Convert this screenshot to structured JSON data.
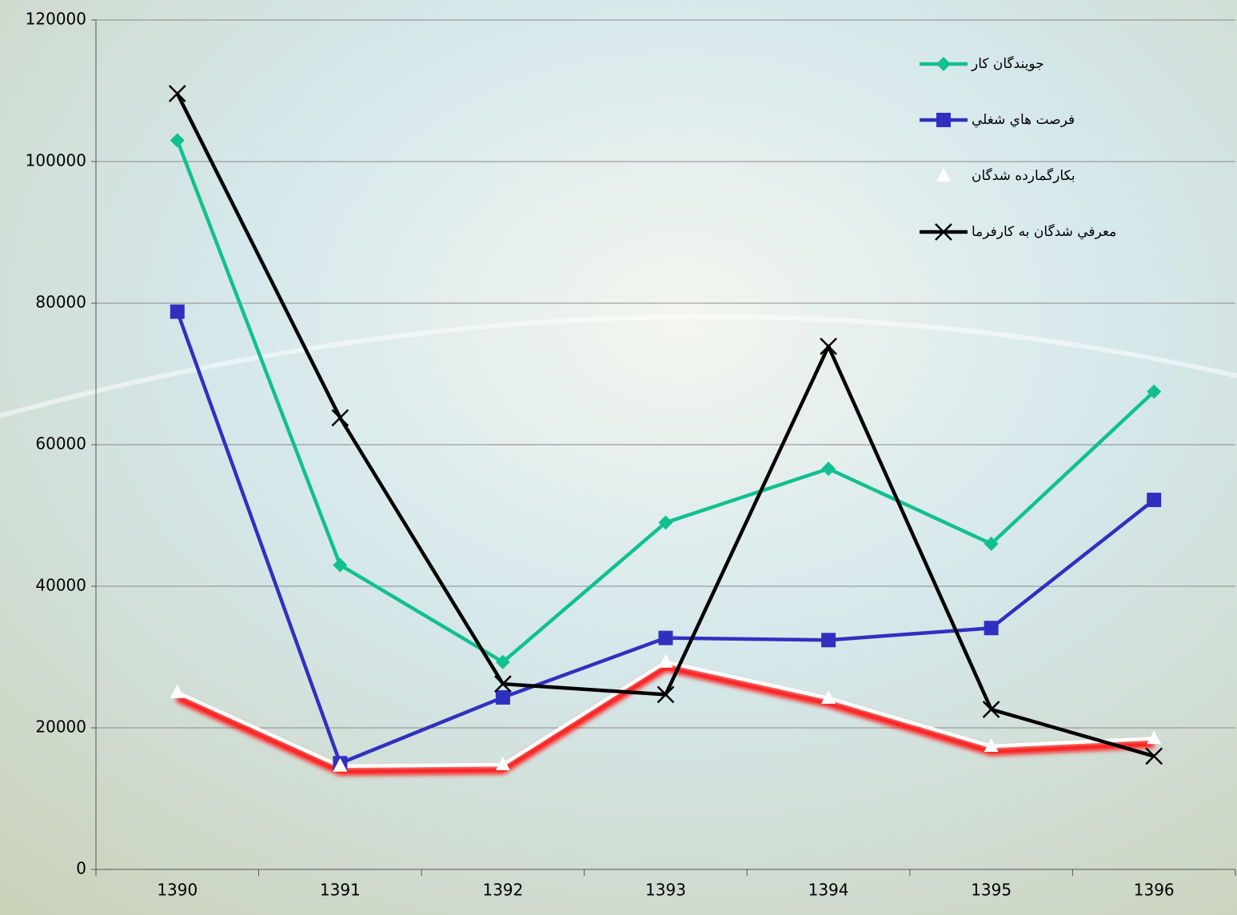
{
  "chart_data": {
    "type": "line",
    "categories": [
      "1390",
      "1391",
      "1392",
      "1393",
      "1394",
      "1395",
      "1396"
    ],
    "series": [
      {
        "name": "جويندگان كار",
        "color": "#10c090",
        "marker": "diamond",
        "values": [
          103000,
          43000,
          29300,
          49000,
          56600,
          46000,
          67500
        ]
      },
      {
        "name": "فرصت هاي شغلي",
        "color": "#3030c0",
        "marker": "square",
        "values": [
          78800,
          15000,
          24300,
          32700,
          32400,
          34100,
          52200
        ]
      },
      {
        "name": "بكارگمارده شدگان",
        "color": "#ffffff",
        "marker": "triangle",
        "values": [
          25000,
          14600,
          14800,
          29300,
          24200,
          17400,
          18500
        ]
      },
      {
        "name": "معرفي شدگان به كارفرما",
        "color": "#000000",
        "marker": "x",
        "values": [
          109600,
          63800,
          26200,
          24700,
          73900,
          22600,
          16000
        ]
      }
    ],
    "ylim": [
      0,
      120000
    ],
    "yticks": [
      0,
      20000,
      40000,
      60000,
      80000,
      100000,
      120000
    ],
    "grid": true,
    "legend": "top-right"
  }
}
